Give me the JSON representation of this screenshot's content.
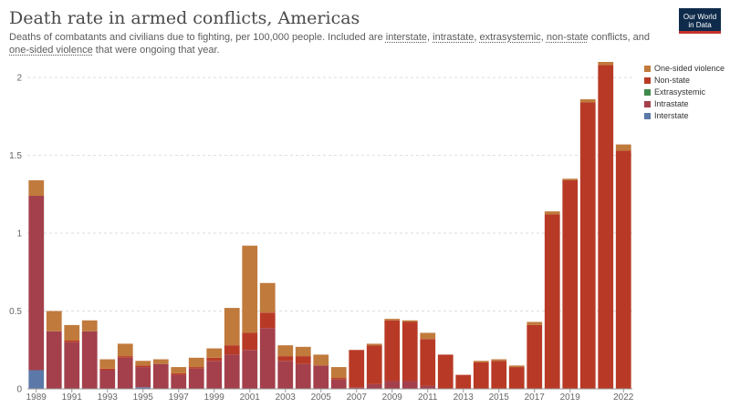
{
  "header": {
    "title": "Death rate in armed conflicts, Americas",
    "subtitle_parts": [
      {
        "text": "Deaths of combatants and civilians due to fighting, per 100,000 people. Included are ",
        "term": false
      },
      {
        "text": "interstate",
        "term": true
      },
      {
        "text": ", ",
        "term": false
      },
      {
        "text": "intrastate",
        "term": true
      },
      {
        "text": ", ",
        "term": false
      },
      {
        "text": "extrasystemic",
        "term": true
      },
      {
        "text": ", ",
        "term": false
      },
      {
        "text": "non-state",
        "term": true
      },
      {
        "text": " conflicts, and ",
        "term": false
      },
      {
        "text": "one-sided violence",
        "term": true
      },
      {
        "text": " that were ongoing that year.",
        "term": false
      }
    ]
  },
  "logo": {
    "line1": "Our World",
    "line2": "in Data"
  },
  "legend": [
    {
      "label": "One-sided violence",
      "color": "#c07a3c"
    },
    {
      "label": "Non-state",
      "color": "#b83a26"
    },
    {
      "label": "Extrasystemic",
      "color": "#3e8a4c"
    },
    {
      "label": "Intrastate",
      "color": "#a3404c"
    },
    {
      "label": "Interstate",
      "color": "#5b78a8"
    }
  ],
  "chart_data": {
    "type": "bar",
    "stacked": true,
    "ylim": [
      0,
      2.1
    ],
    "yticks": [
      0,
      0.5,
      1,
      1.5,
      2
    ],
    "ytick_labels": [
      "0",
      "0.5",
      "1",
      "1.5",
      "2"
    ],
    "xtick_labels": [
      "1989",
      "1991",
      "1993",
      "1995",
      "1997",
      "1999",
      "2001",
      "2003",
      "2005",
      "2007",
      "2009",
      "2011",
      "2013",
      "2015",
      "2017",
      "2019",
      "2022"
    ],
    "categories": [
      "1989",
      "1990",
      "1991",
      "1992",
      "1993",
      "1994",
      "1995",
      "1996",
      "1997",
      "1998",
      "1999",
      "2000",
      "2001",
      "2002",
      "2003",
      "2004",
      "2005",
      "2006",
      "2007",
      "2008",
      "2009",
      "2010",
      "2011",
      "2012",
      "2013",
      "2014",
      "2015",
      "2016",
      "2017",
      "2018",
      "2019",
      "2020",
      "2021",
      "2022"
    ],
    "grid": true,
    "legend_position": "right",
    "series": [
      {
        "name": "Interstate",
        "color": "#5b78a8",
        "values": [
          0.12,
          0,
          0,
          0,
          0,
          0,
          0.01,
          0,
          0,
          0,
          0,
          0,
          0,
          0,
          0,
          0,
          0,
          0,
          0,
          0,
          0,
          0,
          0,
          0,
          0,
          0,
          0,
          0,
          0,
          0,
          0,
          0,
          0,
          0
        ]
      },
      {
        "name": "Intrastate",
        "color": "#a3404c",
        "values": [
          1.12,
          0.37,
          0.3,
          0.37,
          0.12,
          0.2,
          0.13,
          0.16,
          0.09,
          0.13,
          0.18,
          0.22,
          0.25,
          0.39,
          0.18,
          0.16,
          0.15,
          0.06,
          0.01,
          0.03,
          0.05,
          0.05,
          0.02,
          0,
          0,
          0,
          0,
          0,
          0,
          0,
          0,
          0,
          0,
          0
        ]
      },
      {
        "name": "Extrasystemic",
        "color": "#3e8a4c",
        "values": [
          0,
          0,
          0,
          0,
          0,
          0,
          0,
          0,
          0,
          0,
          0,
          0,
          0,
          0,
          0,
          0,
          0,
          0,
          0,
          0,
          0,
          0,
          0,
          0,
          0,
          0,
          0,
          0,
          0,
          0,
          0,
          0,
          0,
          0
        ]
      },
      {
        "name": "Non-state",
        "color": "#b83a26",
        "values": [
          0,
          0,
          0.01,
          0,
          0.01,
          0.01,
          0.01,
          0,
          0.01,
          0.01,
          0.02,
          0.06,
          0.11,
          0.1,
          0.03,
          0.05,
          0,
          0.01,
          0.24,
          0.25,
          0.39,
          0.38,
          0.3,
          0.22,
          0.09,
          0.17,
          0.18,
          0.14,
          0.41,
          1.12,
          1.34,
          1.84,
          2.08,
          1.53
        ]
      },
      {
        "name": "One-sided violence",
        "color": "#c07a3c",
        "values": [
          0.1,
          0.13,
          0.1,
          0.07,
          0.06,
          0.08,
          0.03,
          0.03,
          0.04,
          0.06,
          0.06,
          0.24,
          0.56,
          0.19,
          0.07,
          0.06,
          0.07,
          0.07,
          0,
          0.01,
          0.01,
          0.01,
          0.04,
          0,
          0,
          0.01,
          0.01,
          0.01,
          0.02,
          0.02,
          0.01,
          0.02,
          0.02,
          0.04
        ]
      }
    ]
  }
}
